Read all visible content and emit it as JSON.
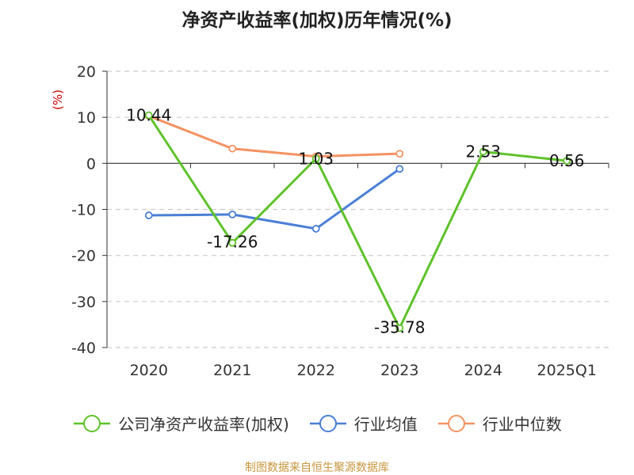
{
  "chart_data": {
    "type": "line",
    "title": "净资产收益率(加权)历年情况(%)",
    "ylabel": "(%)",
    "categories": [
      "2020",
      "2021",
      "2022",
      "2023",
      "2024",
      "2025Q1"
    ],
    "ylim": [
      -40,
      20
    ],
    "yticks": [
      20,
      10,
      0,
      -10,
      -20,
      -30,
      -40
    ],
    "grid": true,
    "legend_position": "bottom",
    "series": [
      {
        "name": "公司净资产收益率(加权)",
        "color": "#5ec22a",
        "values": [
          10.44,
          -17.26,
          1.03,
          -35.78,
          2.53,
          0.56
        ],
        "labels": [
          "10.44",
          "-17.26",
          "1.03",
          "-35.78",
          "2.53",
          "0.56"
        ]
      },
      {
        "name": "行业均值",
        "color": "#4a7fd6",
        "values": [
          -11.3,
          -11.1,
          -14.2,
          -1.2,
          null,
          null
        ]
      },
      {
        "name": "行业中位数",
        "color": "#f59262",
        "values": [
          10.3,
          3.2,
          1.5,
          2.1,
          null,
          null
        ]
      }
    ]
  },
  "source": "制图数据来自恒生聚源数据库",
  "colors": {
    "axis_label": "#cc0000",
    "text": "#333333",
    "grid": "#cccccc",
    "source": "#c8963e"
  }
}
